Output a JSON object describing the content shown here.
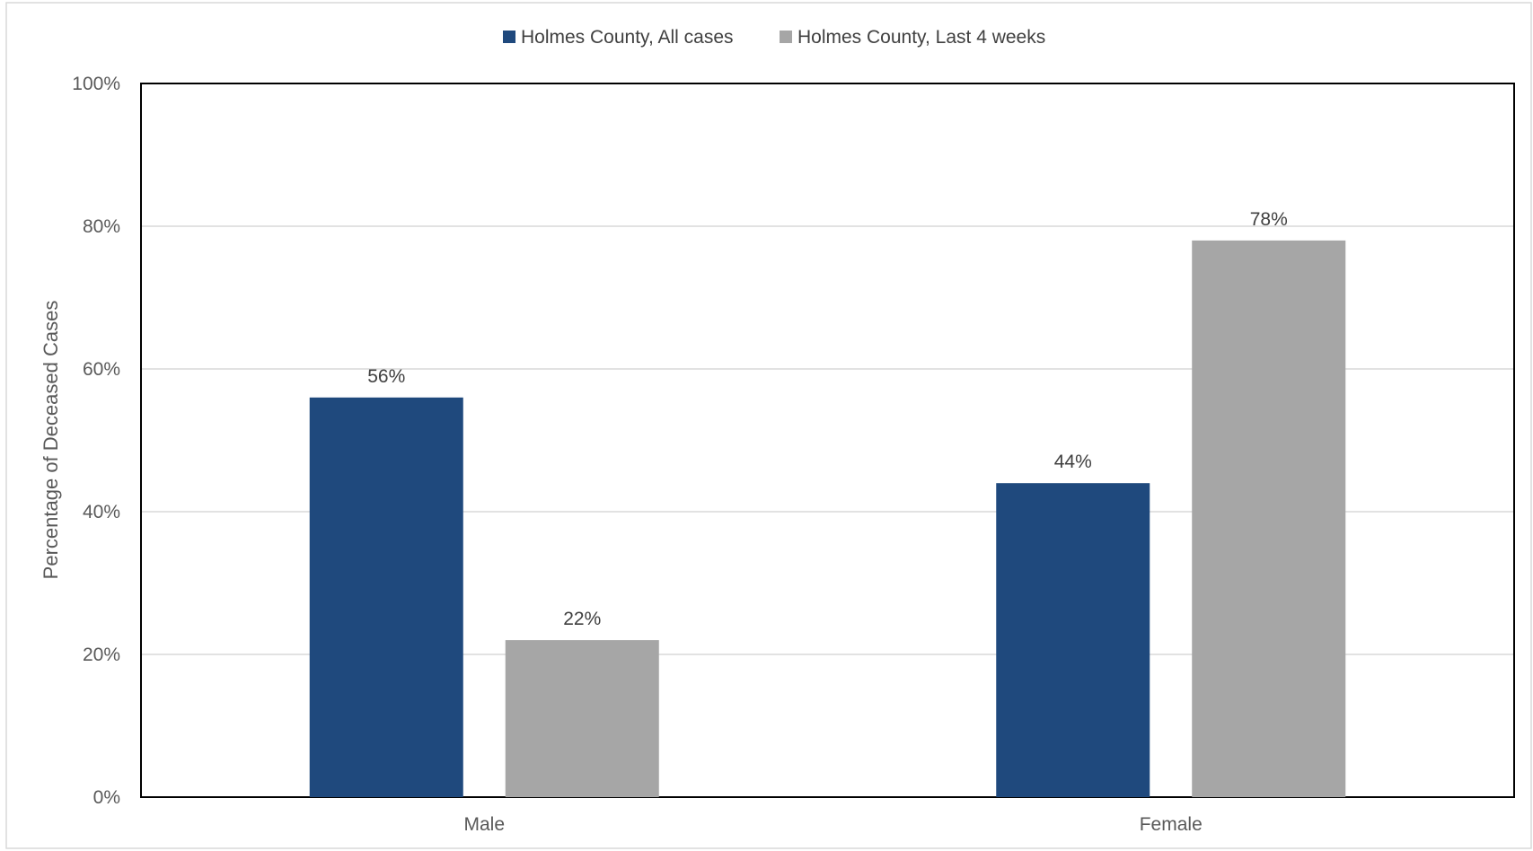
{
  "chart_data": {
    "type": "bar",
    "categories": [
      "Male",
      "Female"
    ],
    "series": [
      {
        "name": "Holmes County, All cases",
        "values": [
          56,
          44
        ],
        "labels": [
          "56%",
          "44%"
        ],
        "color": "#1f497d"
      },
      {
        "name": "Holmes County, Last 4 weeks",
        "values": [
          22,
          78
        ],
        "labels": [
          "22%",
          "78%"
        ],
        "color": "#a6a6a6"
      }
    ],
    "title": "",
    "xlabel": "",
    "ylabel": "Percentage of Deceased Cases",
    "ylim": [
      0,
      100
    ],
    "yticks": [
      0,
      20,
      40,
      60,
      80,
      100
    ],
    "ytick_labels": [
      "0%",
      "20%",
      "40%",
      "60%",
      "80%",
      "100%"
    ],
    "grid": true,
    "legend_position": "top-center"
  }
}
